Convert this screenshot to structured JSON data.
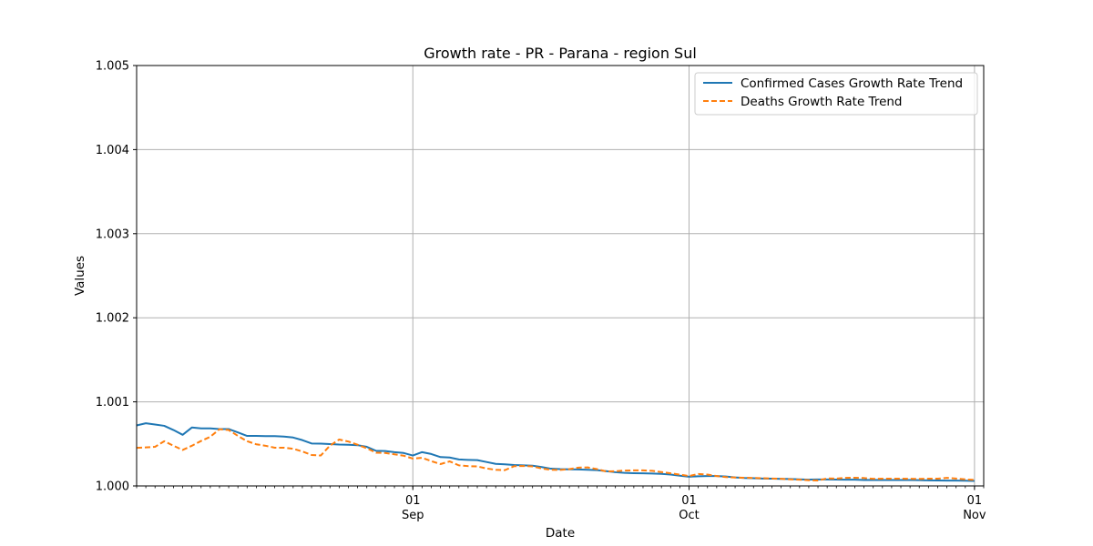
{
  "chart_data": {
    "type": "line",
    "title": "Growth rate - PR - Parana - region Sul",
    "xlabel": "Date",
    "ylabel": "Values",
    "ylim": [
      1.0,
      1.005
    ],
    "xlim": [
      "2020-08-02",
      "2020-11-02"
    ],
    "grid": true,
    "legend_position": "top-right",
    "yticks": [
      "1.000",
      "1.001",
      "1.002",
      "1.003",
      "1.004",
      "1.005"
    ],
    "xticks": [
      {
        "date": "2020-09-01",
        "day": "01",
        "month": "Sep"
      },
      {
        "date": "2020-10-01",
        "day": "01",
        "month": "Oct"
      },
      {
        "date": "2020-11-01",
        "day": "01",
        "month": "Nov"
      }
    ],
    "x": [
      "2020-08-02",
      "2020-08-03",
      "2020-08-04",
      "2020-08-05",
      "2020-08-06",
      "2020-08-07",
      "2020-08-08",
      "2020-08-09",
      "2020-08-10",
      "2020-08-11",
      "2020-08-12",
      "2020-08-13",
      "2020-08-14",
      "2020-08-15",
      "2020-08-16",
      "2020-08-17",
      "2020-08-18",
      "2020-08-19",
      "2020-08-20",
      "2020-08-21",
      "2020-08-22",
      "2020-08-23",
      "2020-08-24",
      "2020-08-25",
      "2020-08-26",
      "2020-08-27",
      "2020-08-28",
      "2020-08-29",
      "2020-08-30",
      "2020-08-31",
      "2020-09-01",
      "2020-09-02",
      "2020-09-03",
      "2020-09-04",
      "2020-09-05",
      "2020-09-06",
      "2020-09-07",
      "2020-09-08",
      "2020-09-09",
      "2020-09-10",
      "2020-09-11",
      "2020-09-12",
      "2020-09-13",
      "2020-09-14",
      "2020-09-15",
      "2020-09-16",
      "2020-09-17",
      "2020-09-18",
      "2020-09-19",
      "2020-09-20",
      "2020-09-21",
      "2020-09-22",
      "2020-09-23",
      "2020-09-24",
      "2020-09-25",
      "2020-09-26",
      "2020-09-27",
      "2020-09-28",
      "2020-09-29",
      "2020-09-30",
      "2020-10-01",
      "2020-10-02",
      "2020-10-03",
      "2020-10-04",
      "2020-10-05",
      "2020-10-06",
      "2020-10-07",
      "2020-10-08",
      "2020-10-09",
      "2020-10-10",
      "2020-10-11",
      "2020-10-12",
      "2020-10-13",
      "2020-10-14",
      "2020-10-15",
      "2020-10-16",
      "2020-10-17",
      "2020-10-18",
      "2020-10-19",
      "2020-10-20",
      "2020-10-21",
      "2020-10-22",
      "2020-10-23",
      "2020-10-24",
      "2020-10-25",
      "2020-10-26",
      "2020-10-27",
      "2020-10-28",
      "2020-10-29",
      "2020-10-30",
      "2020-10-31",
      "2020-11-01"
    ],
    "series": [
      {
        "name": "Confirmed Cases Growth Rate Trend",
        "color": "#1f77b4",
        "dash": "solid",
        "values": [
          1.00072,
          1.000745,
          1.00073,
          1.000715,
          1.000665,
          1.000608,
          1.000695,
          1.000684,
          1.000684,
          1.000677,
          1.000677,
          1.000636,
          1.000595,
          1.000595,
          1.000592,
          1.000592,
          1.000587,
          1.000576,
          1.000545,
          1.000505,
          1.000503,
          1.000498,
          1.000492,
          1.00049,
          1.000485,
          1.000465,
          1.000418,
          1.000415,
          1.000402,
          1.000392,
          1.000362,
          1.000402,
          1.00038,
          1.000343,
          1.000338,
          1.000315,
          1.00031,
          1.000307,
          1.000285,
          1.000262,
          1.000257,
          1.000249,
          1.000245,
          1.000241,
          1.000225,
          1.000205,
          1.0002,
          1.000198,
          1.000196,
          1.000192,
          1.000188,
          1.000176,
          1.000163,
          1.000155,
          1.000152,
          1.00015,
          1.000148,
          1.000143,
          1.000135,
          1.000122,
          1.00011,
          1.000115,
          1.000118,
          1.000118,
          1.000112,
          1.000102,
          1.000095,
          1.000092,
          1.000088,
          1.000086,
          1.000084,
          1.000082,
          1.000078,
          1.000075,
          1.000077,
          1.000077,
          1.000076,
          1.000075,
          1.000074,
          1.00007,
          1.000072,
          1.00007,
          1.00007,
          1.00007,
          1.00007,
          1.000069,
          1.000066,
          1.000065,
          1.000064,
          1.000063,
          1.000062,
          1.00006
        ]
      },
      {
        "name": "Deaths Growth Rate Trend",
        "color": "#ff7f0e",
        "dash": "dashed",
        "values": [
          1.000453,
          1.000458,
          1.000465,
          1.000532,
          1.000478,
          1.000428,
          1.000478,
          1.000535,
          1.000585,
          1.000675,
          1.000665,
          1.000595,
          1.000532,
          1.000495,
          1.000478,
          1.000455,
          1.000455,
          1.000442,
          1.00041,
          1.000368,
          1.000362,
          1.00048,
          1.000552,
          1.000528,
          1.00049,
          1.000448,
          1.000395,
          1.000392,
          1.000376,
          1.00036,
          1.000325,
          1.000335,
          1.000295,
          1.00026,
          1.000292,
          1.000245,
          1.000236,
          1.000232,
          1.000208,
          1.000192,
          1.000188,
          1.000235,
          1.000237,
          1.000232,
          1.000208,
          1.000192,
          1.00019,
          1.0002,
          1.000218,
          1.00022,
          1.0002,
          1.000172,
          1.000175,
          1.000183,
          1.000185,
          1.000185,
          1.00018,
          1.000165,
          1.00015,
          1.000135,
          1.000118,
          1.000142,
          1.000135,
          1.000118,
          1.000105,
          1.0001,
          1.000098,
          1.000095,
          1.000092,
          1.000088,
          1.000085,
          1.000078,
          1.000075,
          1.000068,
          1.000065,
          1.00009,
          1.000088,
          1.000096,
          1.000098,
          1.000094,
          1.000085,
          1.000086,
          1.000087,
          1.000087,
          1.000085,
          1.000084,
          1.000086,
          1.000086,
          1.000096,
          1.000088,
          1.000078,
          1.000072
        ]
      }
    ]
  }
}
